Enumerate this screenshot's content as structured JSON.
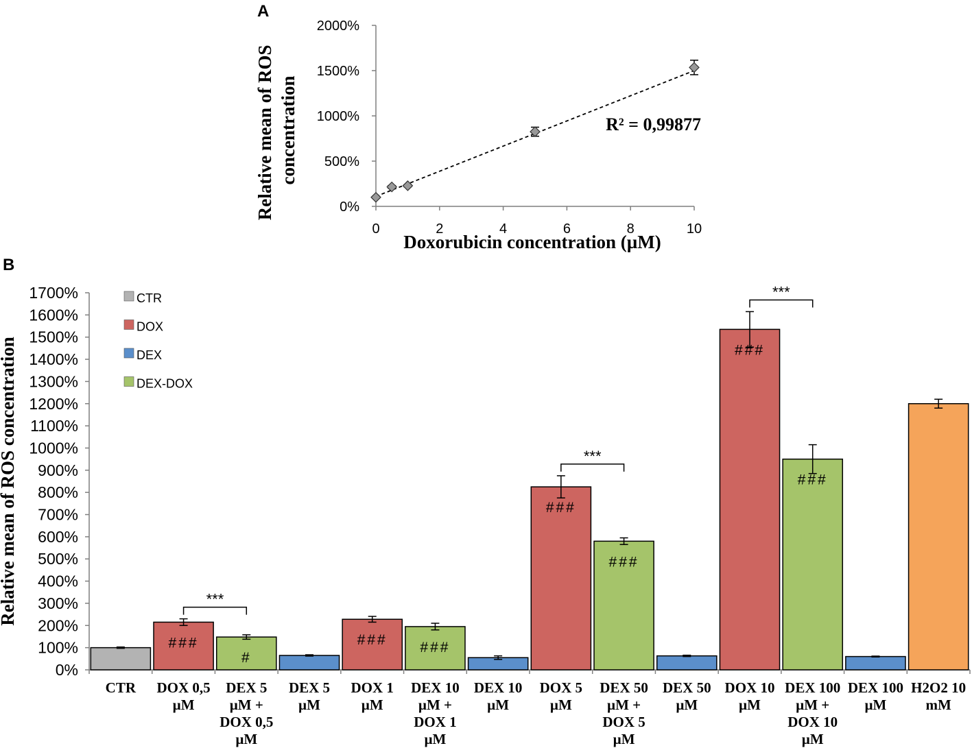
{
  "chart_data": [
    {
      "type": "scatter",
      "panel_label": "A",
      "title": "",
      "xlabel": "Doxorubicin concentration (µM)",
      "ylabel_lines": [
        "Relative mean of ROS",
        "concentration"
      ],
      "xlim": [
        0,
        10
      ],
      "ylim": [
        0,
        2000
      ],
      "x_ticks": [
        0,
        2,
        4,
        6,
        8,
        10
      ],
      "y_ticks": [
        0,
        500,
        1000,
        1500,
        2000
      ],
      "y_tick_labels": [
        "0%",
        "500%",
        "1000%",
        "1500%",
        "2000%"
      ],
      "points": [
        {
          "x": 0,
          "y": 100,
          "err": 10
        },
        {
          "x": 0.5,
          "y": 215,
          "err": 15
        },
        {
          "x": 1,
          "y": 228,
          "err": 12
        },
        {
          "x": 5,
          "y": 825,
          "err": 50
        },
        {
          "x": 10,
          "y": 1535,
          "err": 80
        }
      ],
      "trendline": {
        "style": "dashed",
        "x_start": 0,
        "y_start": 110,
        "x_end": 10,
        "y_end": 1500
      },
      "annotation": "R² = 0,99877",
      "grid": false
    },
    {
      "type": "bar",
      "panel_label": "B",
      "title": "",
      "xlabel": "",
      "ylabel": "Relative mean of ROS concentration",
      "ylim": [
        0,
        1700
      ],
      "y_ticks": [
        0,
        100,
        200,
        300,
        400,
        500,
        600,
        700,
        800,
        900,
        1000,
        1100,
        1200,
        1300,
        1400,
        1500,
        1600,
        1700
      ],
      "y_tick_labels": [
        "0%",
        "100%",
        "200%",
        "300%",
        "400%",
        "500%",
        "600%",
        "700%",
        "800%",
        "900%",
        "1000%",
        "1100%",
        "1200%",
        "1300%",
        "1400%",
        "1500%",
        "1600%",
        "1700%"
      ],
      "legend": {
        "position": "top-left",
        "entries": [
          {
            "label": "CTR",
            "color": "#b3b3b3"
          },
          {
            "label": "DOX",
            "color": "#cd6560"
          },
          {
            "label": "DEX",
            "color": "#5b8fcb"
          },
          {
            "label": "DEX-DOX",
            "color": "#a5c46a"
          }
        ]
      },
      "bars": [
        {
          "label_lines": [
            "CTR"
          ],
          "value": 100,
          "err": 3,
          "group": "CTR",
          "color": "#b3b3b3",
          "mark": ""
        },
        {
          "label_lines": [
            "DOX 0,5",
            "µM"
          ],
          "value": 215,
          "err": 15,
          "group": "DOX",
          "color": "#cd6560",
          "mark": "###"
        },
        {
          "label_lines": [
            "DEX 5",
            "µM +",
            "DOX 0,5",
            "µM"
          ],
          "value": 148,
          "err": 10,
          "group": "DEX-DOX",
          "color": "#a5c46a",
          "mark": "#"
        },
        {
          "label_lines": [
            "DEX 5",
            "µM"
          ],
          "value": 65,
          "err": 3,
          "group": "DEX",
          "color": "#5b8fcb",
          "mark": ""
        },
        {
          "label_lines": [
            "DOX 1",
            "µM"
          ],
          "value": 228,
          "err": 13,
          "group": "DOX",
          "color": "#cd6560",
          "mark": "###"
        },
        {
          "label_lines": [
            "DEX 10",
            "µM +",
            "DOX 1",
            "µM"
          ],
          "value": 195,
          "err": 15,
          "group": "DEX-DOX",
          "color": "#a5c46a",
          "mark": "###"
        },
        {
          "label_lines": [
            "DEX 10",
            "µM"
          ],
          "value": 55,
          "err": 8,
          "group": "DEX",
          "color": "#5b8fcb",
          "mark": ""
        },
        {
          "label_lines": [
            "DOX 5",
            "µM"
          ],
          "value": 825,
          "err": 50,
          "group": "DOX",
          "color": "#cd6560",
          "mark": "###"
        },
        {
          "label_lines": [
            "DEX 50",
            "µM +",
            "DOX 5",
            "µM"
          ],
          "value": 580,
          "err": 15,
          "group": "DEX-DOX",
          "color": "#a5c46a",
          "mark": "###"
        },
        {
          "label_lines": [
            "DEX 50",
            "µM"
          ],
          "value": 63,
          "err": 3,
          "group": "DEX",
          "color": "#5b8fcb",
          "mark": ""
        },
        {
          "label_lines": [
            "DOX 10",
            "µM"
          ],
          "value": 1535,
          "err": 80,
          "group": "DOX",
          "color": "#cd6560",
          "mark": "###"
        },
        {
          "label_lines": [
            "DEX 100",
            "µM +",
            "DOX 10",
            "µM"
          ],
          "value": 950,
          "err": 65,
          "group": "DEX-DOX",
          "color": "#a5c46a",
          "mark": "###"
        },
        {
          "label_lines": [
            "DEX 100",
            "µM"
          ],
          "value": 60,
          "err": 2,
          "group": "DEX",
          "color": "#5b8fcb",
          "mark": ""
        },
        {
          "label_lines": [
            "H2O2 10",
            "mM"
          ],
          "value": 1200,
          "err": 20,
          "group": "H2O2",
          "color": "#f5a45a",
          "mark": ""
        }
      ],
      "significance": [
        {
          "from": 1,
          "to": 2,
          "label": "***"
        },
        {
          "from": 7,
          "to": 8,
          "label": "***"
        },
        {
          "from": 10,
          "to": 11,
          "label": "***"
        }
      ]
    }
  ]
}
